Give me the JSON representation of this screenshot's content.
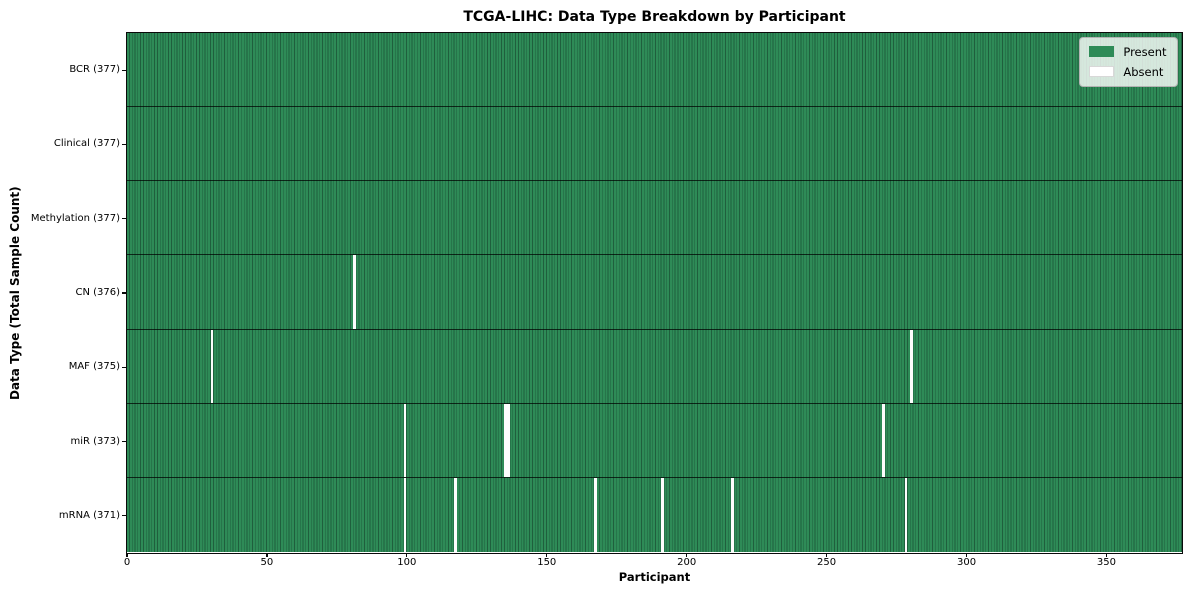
{
  "chart_data": {
    "type": "heatmap",
    "title": "TCGA-LIHC: Data Type Breakdown by Participant",
    "xlabel": "Participant",
    "ylabel": "Data Type (Total Sample Count)",
    "n_participants": 377,
    "x_range": [
      0,
      377
    ],
    "x_ticks": [
      0,
      50,
      100,
      150,
      200,
      250,
      300,
      350
    ],
    "grid": false,
    "legend_position": "upper right",
    "legend": [
      {
        "label": "Present",
        "color": "#2e8b57"
      },
      {
        "label": "Absent",
        "color": "#ffffff"
      }
    ],
    "rows": [
      {
        "key": "bcr",
        "label": "BCR (377)",
        "data_type": "BCR",
        "present_count": 377,
        "absent_participants": []
      },
      {
        "key": "clinical",
        "label": "Clinical (377)",
        "data_type": "Clinical",
        "present_count": 377,
        "absent_participants": []
      },
      {
        "key": "methylation",
        "label": "Methylation (377)",
        "data_type": "Methylation",
        "present_count": 377,
        "absent_participants": []
      },
      {
        "key": "cn",
        "label": "CN (376)",
        "data_type": "CN",
        "present_count": 376,
        "absent_participants": [
          81
        ]
      },
      {
        "key": "maf",
        "label": "MAF (375)",
        "data_type": "MAF",
        "present_count": 375,
        "absent_participants": [
          30,
          280
        ]
      },
      {
        "key": "mir",
        "label": "miR (373)",
        "data_type": "miR",
        "present_count": 373,
        "absent_participants": [
          99,
          135,
          136,
          270
        ]
      },
      {
        "key": "mrna",
        "label": "mRNA (371)",
        "data_type": "mRNA",
        "present_count": 371,
        "absent_participants": [
          99,
          117,
          167,
          191,
          216,
          278
        ]
      }
    ],
    "colors": {
      "present": "#2e8b57",
      "present_edge": "#1f5f3d",
      "absent": "#fdfdfd",
      "row_divider": "#1a1a1a",
      "spine": "#0a0a0a"
    }
  }
}
